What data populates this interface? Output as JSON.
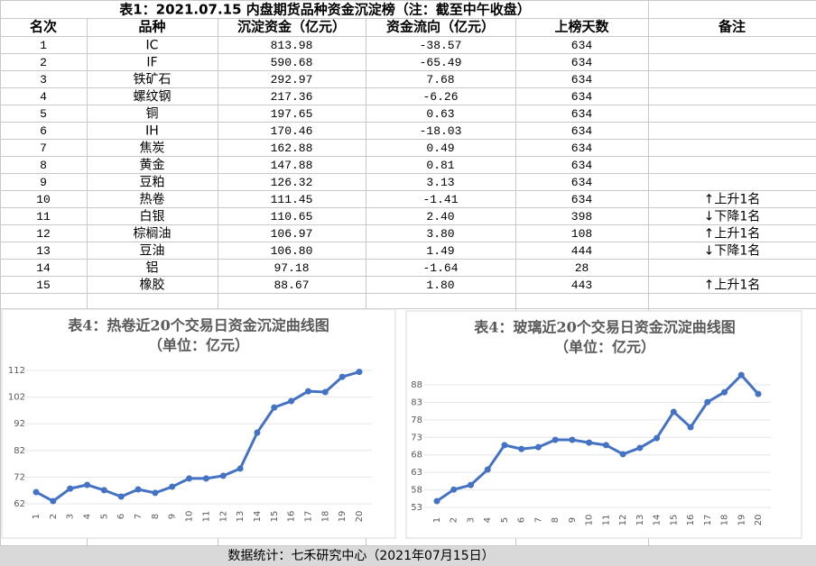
{
  "table": {
    "title": "表1：2021.07.15 内盘期货品种资金沉淀榜（注：截至中午收盘）",
    "headers": [
      "名次",
      "品种",
      "沉淀资金（亿元）",
      "资金流向（亿元）",
      "上榜天数",
      "备注"
    ],
    "rows": [
      [
        "1",
        "IC",
        "813.98",
        "-38.57",
        "634",
        ""
      ],
      [
        "2",
        "IF",
        "590.68",
        "-65.49",
        "634",
        ""
      ],
      [
        "3",
        "铁矿石",
        "292.97",
        "7.68",
        "634",
        ""
      ],
      [
        "4",
        "螺纹钢",
        "217.36",
        "-6.26",
        "634",
        ""
      ],
      [
        "5",
        "铜",
        "197.65",
        "0.63",
        "634",
        ""
      ],
      [
        "6",
        "IH",
        "170.46",
        "-18.03",
        "634",
        ""
      ],
      [
        "7",
        "焦炭",
        "162.88",
        "0.49",
        "634",
        ""
      ],
      [
        "8",
        "黄金",
        "147.88",
        "0.81",
        "634",
        ""
      ],
      [
        "9",
        "豆粕",
        "126.32",
        "3.13",
        "634",
        ""
      ],
      [
        "10",
        "热卷",
        "111.45",
        "-1.41",
        "634",
        "↑上升1名"
      ],
      [
        "11",
        "白银",
        "110.65",
        "2.40",
        "398",
        "↓下降1名"
      ],
      [
        "12",
        "棕榈油",
        "106.97",
        "3.80",
        "108",
        "↑上升1名"
      ],
      [
        "13",
        "豆油",
        "106.80",
        "1.49",
        "444",
        "↓下降1名"
      ],
      [
        "14",
        "铝",
        "97.18",
        "-1.64",
        "28",
        ""
      ],
      [
        "15",
        "橡胶",
        "88.67",
        "1.80",
        "443",
        "↑上升1名"
      ]
    ]
  },
  "chart_data": [
    {
      "type": "line",
      "title": "表4：热卷近20个交易日资金沉淀曲线图",
      "subtitle": "（单位：亿元）",
      "categories": [
        "1",
        "2",
        "3",
        "4",
        "5",
        "6",
        "7",
        "8",
        "9",
        "10",
        "11",
        "12",
        "13",
        "14",
        "15",
        "16",
        "17",
        "18",
        "19",
        "20"
      ],
      "values": [
        66.4,
        63.0,
        67.7,
        69.1,
        67.1,
        64.7,
        67.4,
        66.1,
        68.4,
        71.5,
        71.5,
        72.5,
        75.2,
        88.7,
        98.1,
        100.5,
        104.2,
        103.9,
        109.6,
        111.45
      ],
      "color": "#4472c4",
      "ylim": [
        62,
        112
      ],
      "yticks": [
        62,
        72,
        82,
        92,
        102,
        112
      ],
      "grid": true
    },
    {
      "type": "line",
      "title": "表4：玻璃近20个交易日资金沉淀曲线图",
      "subtitle": "（单位：亿元）",
      "categories": [
        "1",
        "2",
        "3",
        "4",
        "5",
        "6",
        "7",
        "8",
        "9",
        "10",
        "11",
        "12",
        "13",
        "14",
        "15",
        "16",
        "17",
        "18",
        "19",
        "20"
      ],
      "values": [
        54.8,
        58.1,
        59.4,
        63.8,
        70.8,
        69.7,
        70.2,
        72.3,
        72.3,
        71.5,
        70.8,
        68.2,
        70.0,
        72.8,
        80.3,
        75.9,
        83.1,
        85.9,
        90.8,
        85.4
      ],
      "color": "#4472c4",
      "ylim": [
        53,
        92
      ],
      "yticks": [
        53,
        58,
        63,
        68,
        73,
        78,
        83,
        88
      ],
      "grid": true
    }
  ],
  "footer": "数据统计：七禾研究中心（2021年07月15日）"
}
